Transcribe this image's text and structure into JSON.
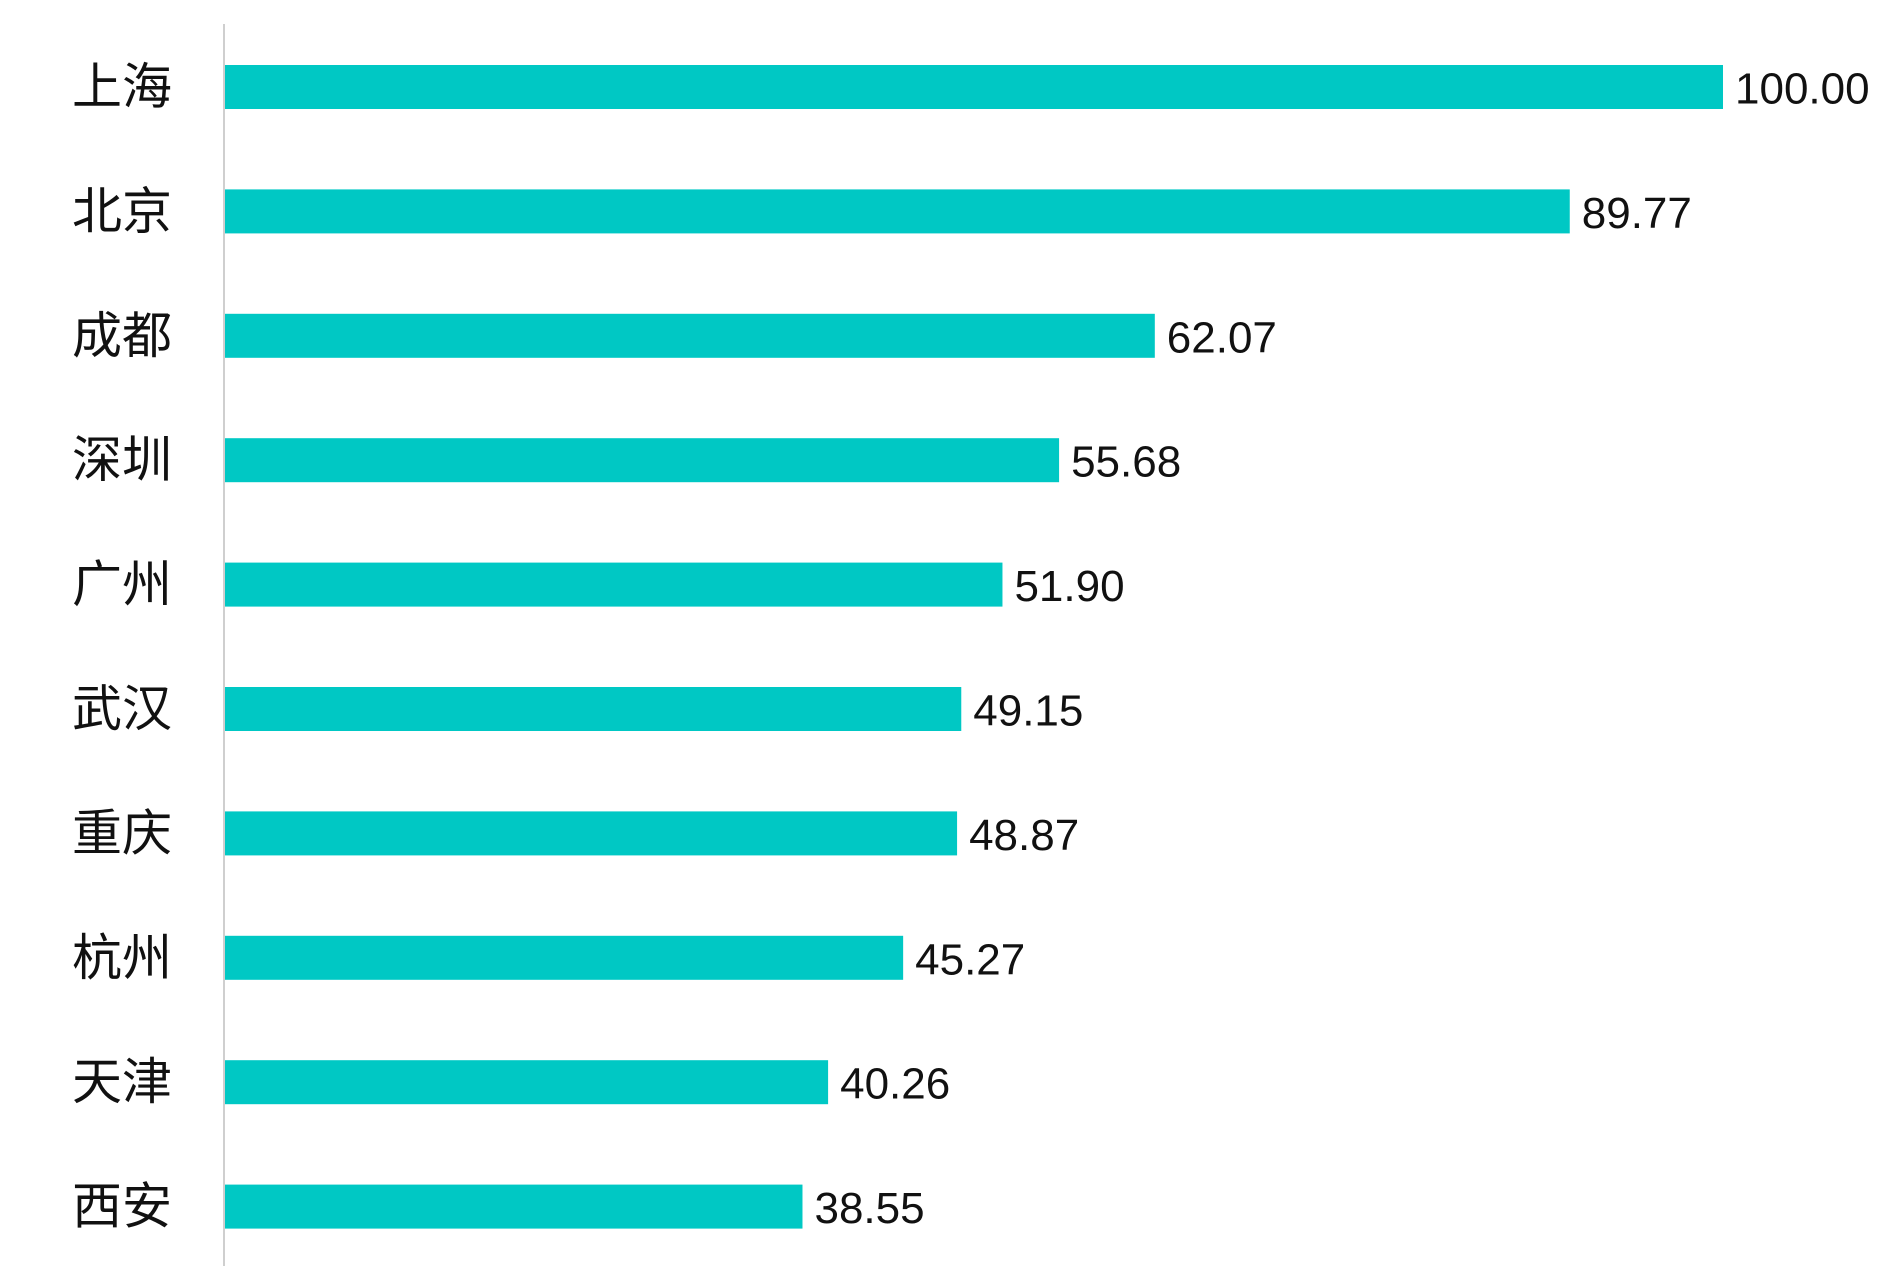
{
  "chart_data": {
    "type": "bar",
    "orientation": "horizontal",
    "title": "",
    "xlabel": "",
    "ylabel": "",
    "categories": [
      "上海",
      "北京",
      "成都",
      "深圳",
      "广州",
      "武汉",
      "重庆",
      "杭州",
      "天津",
      "西安"
    ],
    "values": [
      100.0,
      89.77,
      62.07,
      55.68,
      51.9,
      49.15,
      48.87,
      45.27,
      40.26,
      38.55
    ],
    "value_labels": [
      "100.00",
      "89.77",
      "62.07",
      "55.68",
      "51.90",
      "49.15",
      "48.87",
      "45.27",
      "40.26",
      "38.55"
    ],
    "xlim": [
      0,
      100
    ],
    "grid": false,
    "legend": "none",
    "data_labels": "outside-end",
    "colors": {
      "bar": "#00C8C4",
      "axis": "#cfcfcf",
      "text": "#111111"
    }
  }
}
